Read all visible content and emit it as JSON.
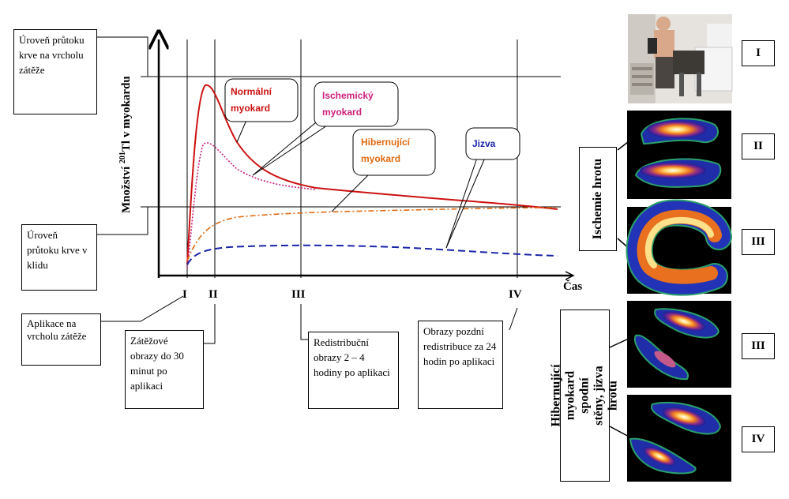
{
  "colors": {
    "normal": "#cc1111",
    "ischemic": "#cc1f7a",
    "hibernating": "#e06a10",
    "scar": "#1a24a8"
  },
  "diagram": {
    "y_label_prefix": "Množství ",
    "y_label_sup": "201",
    "y_label_suffix": "Tl v myokardu",
    "x_label": "Čas",
    "stress_level_label": "Úroveň průtoku krve na vrcholu zátěže",
    "rest_level_label": "Úroveň průtoku krve v klidu",
    "curve_labels": {
      "normal": "Normální myokard",
      "ischemic": "Ischemický myokard",
      "hibernating": "Hibernující myokard",
      "scar": "Jizva"
    },
    "time_points": [
      "I",
      "II",
      "III",
      "IV"
    ],
    "notes": {
      "injection": "Aplikace na vrcholu zátěže",
      "stress": "Zátěžové obrazy do 30 minut po aplikaci",
      "redistribution": "Redistribuční obrazy 2 – 4 hodiny po aplikaci",
      "late": "Obrazy pozdní redistribuce za 24 hodin po aplikaci"
    }
  },
  "images": {
    "photo_alt_label": "I",
    "rows": [
      "I",
      "II",
      "III",
      "III",
      "IV"
    ],
    "ischemia_caption": "Ischemie hrotu",
    "hibernation_caption": "Hibernující myokard spodní stěny, jizva hrotu"
  }
}
